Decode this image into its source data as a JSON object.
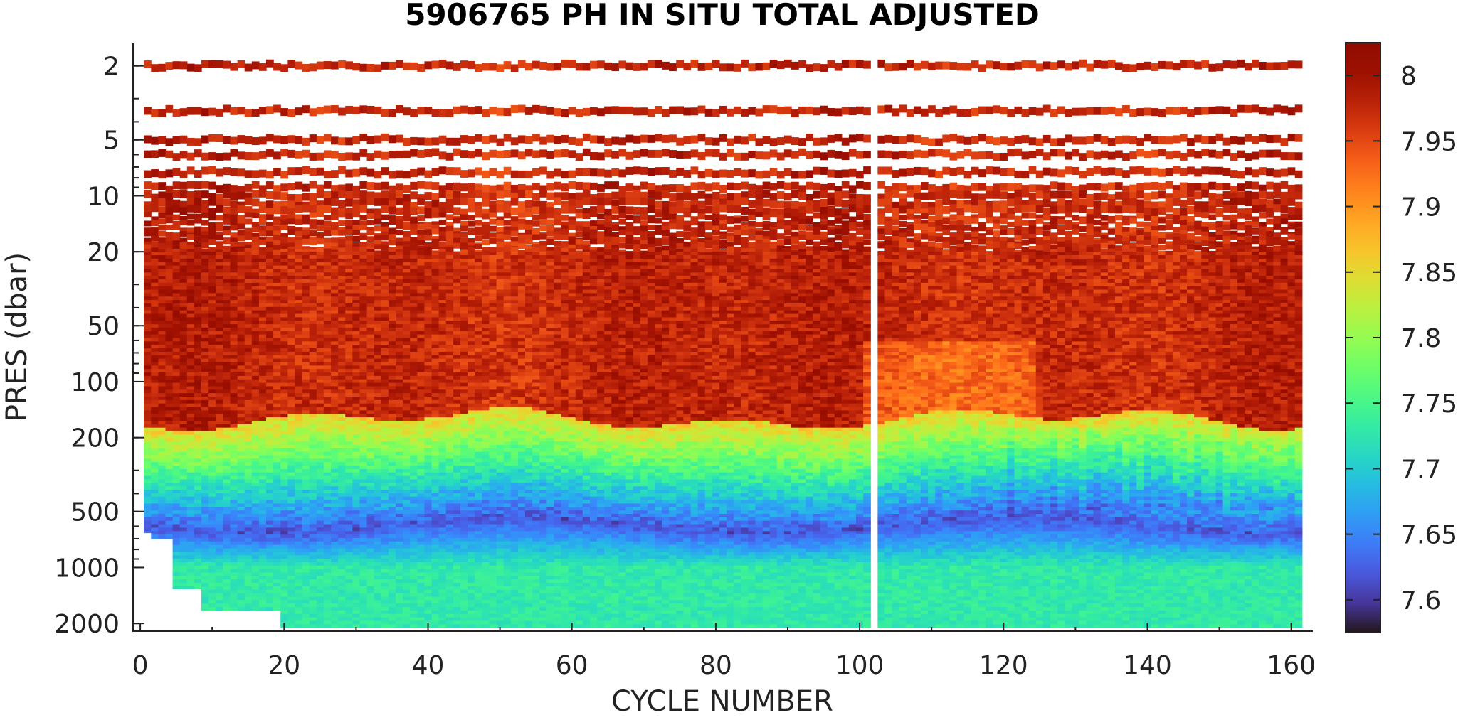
{
  "chart_data": {
    "type": "heatmap",
    "title": "5906765  PH IN SITU TOTAL ADJUSTED",
    "xlabel": "CYCLE NUMBER",
    "ylabel": "PRES (dbar)",
    "xlim": [
      -1,
      163
    ],
    "ylim": [
      1.5,
      2200
    ],
    "yscale": "log",
    "x_ticks": [
      0,
      20,
      40,
      60,
      80,
      100,
      120,
      140,
      160
    ],
    "x_tick_labels": [
      "0",
      "20",
      "40",
      "60",
      "80",
      "100",
      "120",
      "140",
      "160"
    ],
    "y_ticks": [
      2,
      5,
      10,
      20,
      50,
      100,
      200,
      500,
      1000,
      2000
    ],
    "y_tick_labels": [
      "2",
      "5",
      "10",
      "20",
      "50",
      "100",
      "200",
      "500",
      "1000",
      "2000"
    ],
    "colorbar": {
      "colormap": "turbo",
      "range": [
        7.575,
        8.025
      ],
      "ticks": [
        7.6,
        7.65,
        7.7,
        7.75,
        7.8,
        7.85,
        7.9,
        7.95,
        8.0
      ],
      "tick_labels": [
        "7.6",
        "7.65",
        "7.7",
        "7.75",
        "7.8",
        "7.85",
        "7.9",
        "7.95",
        "8"
      ]
    },
    "cycles": [
      1,
      161
    ],
    "shallow_sample_levels_dbar": [
      2,
      3.5,
      5,
      6,
      7.5,
      9,
      10,
      11,
      12,
      13,
      14,
      15,
      16,
      17,
      18,
      19,
      20
    ],
    "missing_profiles": [
      102
    ],
    "profile_max_pressure": [
      {
        "cycles": [
          1,
          1
        ],
        "max_pres": 650
      },
      {
        "cycles": [
          2,
          4
        ],
        "max_pres": 700
      },
      {
        "cycles": [
          5,
          8
        ],
        "max_pres": 1300
      },
      {
        "cycles": [
          9,
          19
        ],
        "max_pres": 1700
      },
      {
        "cycles": [
          20,
          161
        ],
        "max_pres": 2100
      }
    ],
    "layers_ph": [
      {
        "pres_range": [
          1.8,
          150
        ],
        "ph_range": [
          7.93,
          8.02
        ],
        "description": "surface layer"
      },
      {
        "pres_range": [
          150,
          250
        ],
        "ph_range": [
          7.78,
          7.87
        ]
      },
      {
        "pres_range": [
          250,
          450
        ],
        "ph_range": [
          7.68,
          7.76
        ]
      },
      {
        "pres_range": [
          450,
          750
        ],
        "ph_range": [
          7.59,
          7.66
        ],
        "description": "pH minimum"
      },
      {
        "pres_range": [
          750,
          2100
        ],
        "ph_range": [
          7.7,
          7.76
        ]
      }
    ]
  }
}
